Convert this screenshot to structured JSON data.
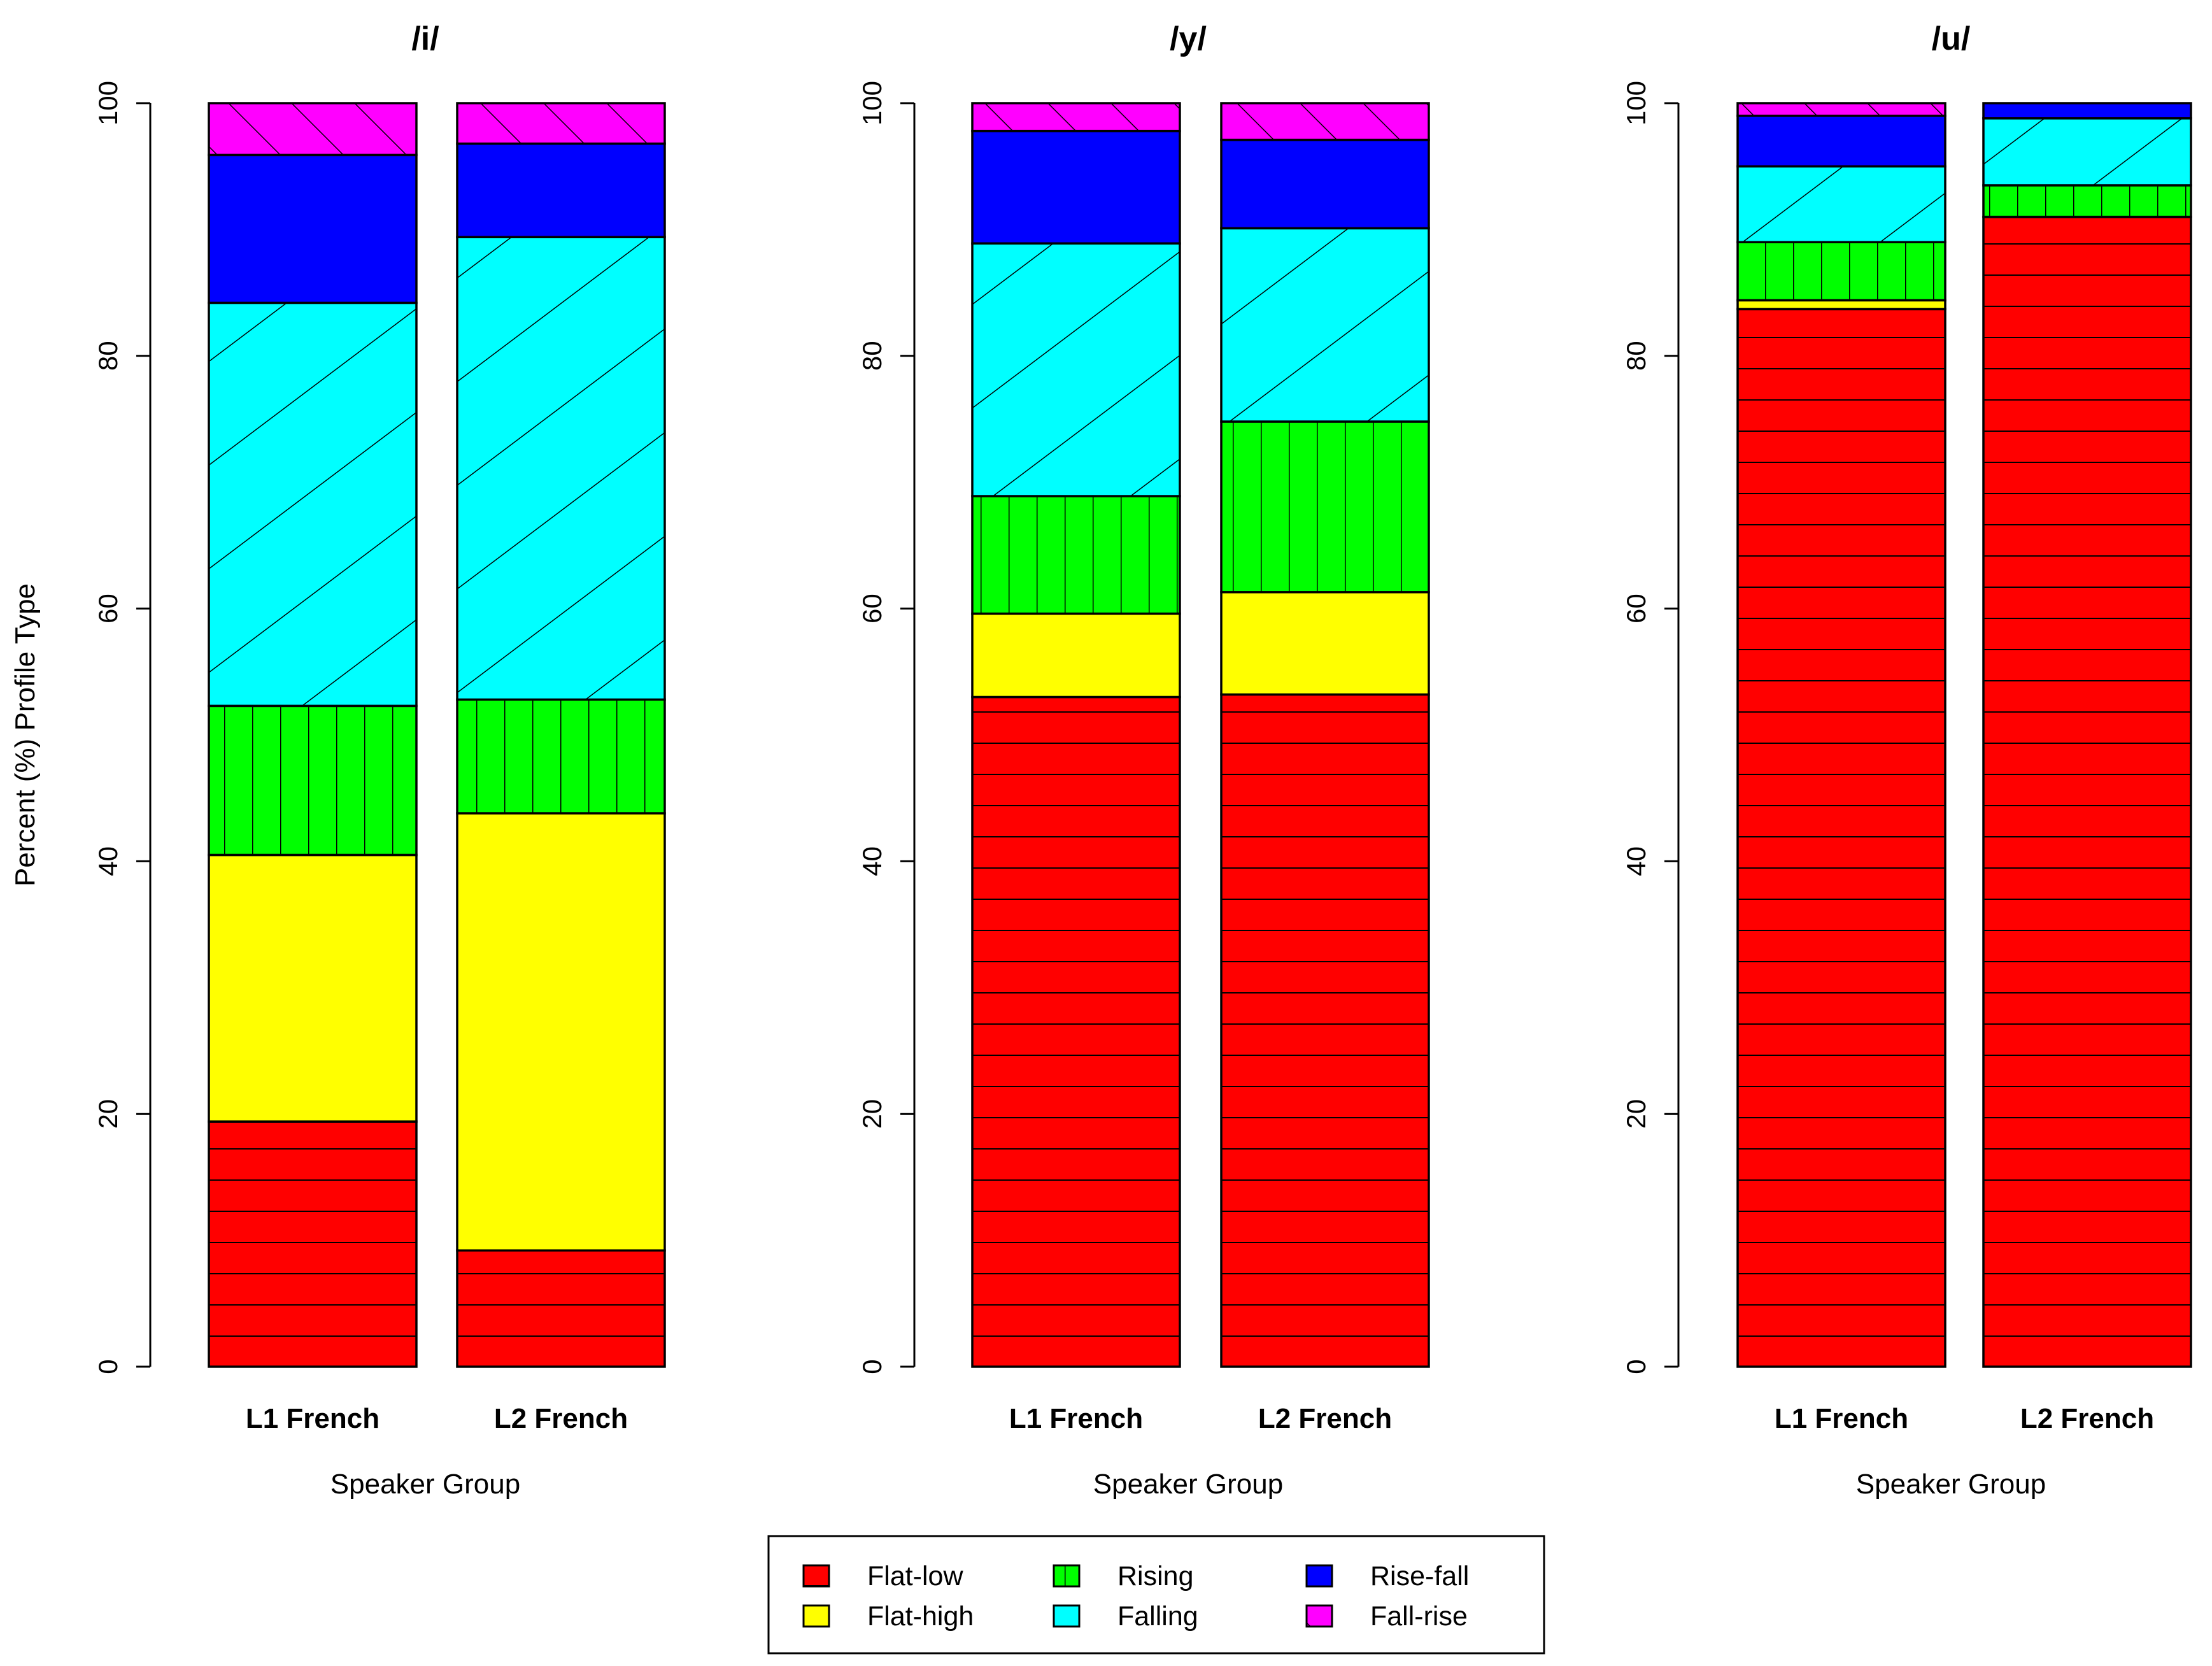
{
  "chart_data": {
    "type": "bar",
    "stacked": true,
    "ylabel": "Percent (%) Profile Type",
    "xlabel": "Speaker Group",
    "ylim": [
      0,
      100
    ],
    "yticks": [
      0,
      20,
      40,
      60,
      80,
      100
    ],
    "categories": [
      "L1 French",
      "L2 French"
    ],
    "series_styles": [
      {
        "name": "Flat-low",
        "color": "#ff0000",
        "pattern": "horizontal"
      },
      {
        "name": "Flat-high",
        "color": "#ffff00",
        "pattern": "none"
      },
      {
        "name": "Rising",
        "color": "#00ff00",
        "pattern": "vertical"
      },
      {
        "name": "Falling",
        "color": "#00ffff",
        "pattern": "diagonal-up"
      },
      {
        "name": "Rise-fall",
        "color": "#0000ff",
        "pattern": "none"
      },
      {
        "name": "Fall-rise",
        "color": "#ff00ff",
        "pattern": "diagonal-down"
      }
    ],
    "panels": [
      {
        "title": "/i/",
        "series": [
          {
            "name": "Flat-low",
            "values": [
              19.4,
              9.2
            ]
          },
          {
            "name": "Flat-high",
            "values": [
              21.1,
              34.6
            ]
          },
          {
            "name": "Rising",
            "values": [
              11.8,
              9.0
            ]
          },
          {
            "name": "Falling",
            "values": [
              31.9,
              36.6
            ]
          },
          {
            "name": "Rise-fall",
            "values": [
              11.7,
              7.4
            ]
          },
          {
            "name": "Fall-rise",
            "values": [
              4.1,
              3.2
            ]
          }
        ]
      },
      {
        "title": "/y/",
        "series": [
          {
            "name": "Flat-low",
            "values": [
              53.0,
              53.2
            ]
          },
          {
            "name": "Flat-high",
            "values": [
              6.6,
              8.1
            ]
          },
          {
            "name": "Rising",
            "values": [
              9.3,
              13.5
            ]
          },
          {
            "name": "Falling",
            "values": [
              20.0,
              15.3
            ]
          },
          {
            "name": "Rise-fall",
            "values": [
              8.9,
              7.0
            ]
          },
          {
            "name": "Fall-rise",
            "values": [
              2.2,
              2.9
            ]
          }
        ]
      },
      {
        "title": "/u/",
        "series": [
          {
            "name": "Flat-low",
            "values": [
              83.7,
              91.0
            ]
          },
          {
            "name": "Flat-high",
            "values": [
              0.7,
              0.0
            ]
          },
          {
            "name": "Rising",
            "values": [
              4.6,
              2.5
            ]
          },
          {
            "name": "Falling",
            "values": [
              6.0,
              5.3
            ]
          },
          {
            "name": "Rise-fall",
            "values": [
              4.0,
              1.2
            ]
          },
          {
            "name": "Fall-rise",
            "values": [
              1.0,
              0.0
            ]
          }
        ]
      }
    ],
    "legend": {
      "position": "bottom-center",
      "columns": 3,
      "order": [
        "Flat-low",
        "Flat-high",
        "Rising",
        "Falling",
        "Rise-fall",
        "Fall-rise"
      ]
    }
  }
}
